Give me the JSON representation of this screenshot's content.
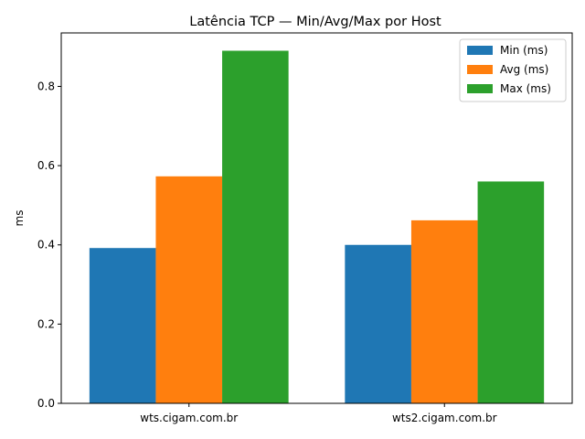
{
  "chart_data": {
    "type": "bar",
    "title": "Latência TCP — Min/Avg/Max por Host",
    "xlabel": "",
    "ylabel": "ms",
    "categories": [
      "wts.cigam.com.br",
      "wts2.cigam.com.br"
    ],
    "series": [
      {
        "name": "Min (ms)",
        "values": [
          0.392,
          0.4
        ],
        "color": "#1f77b4"
      },
      {
        "name": "Avg (ms)",
        "values": [
          0.573,
          0.462
        ],
        "color": "#ff7f0e"
      },
      {
        "name": "Max (ms)",
        "values": [
          0.89,
          0.56
        ],
        "color": "#2ca02c"
      }
    ],
    "ylim": [
      0,
      0.935
    ],
    "yticks": [
      "0.0",
      "0.2",
      "0.4",
      "0.6",
      "0.8"
    ],
    "grid": false,
    "legend_position": "top-right"
  }
}
